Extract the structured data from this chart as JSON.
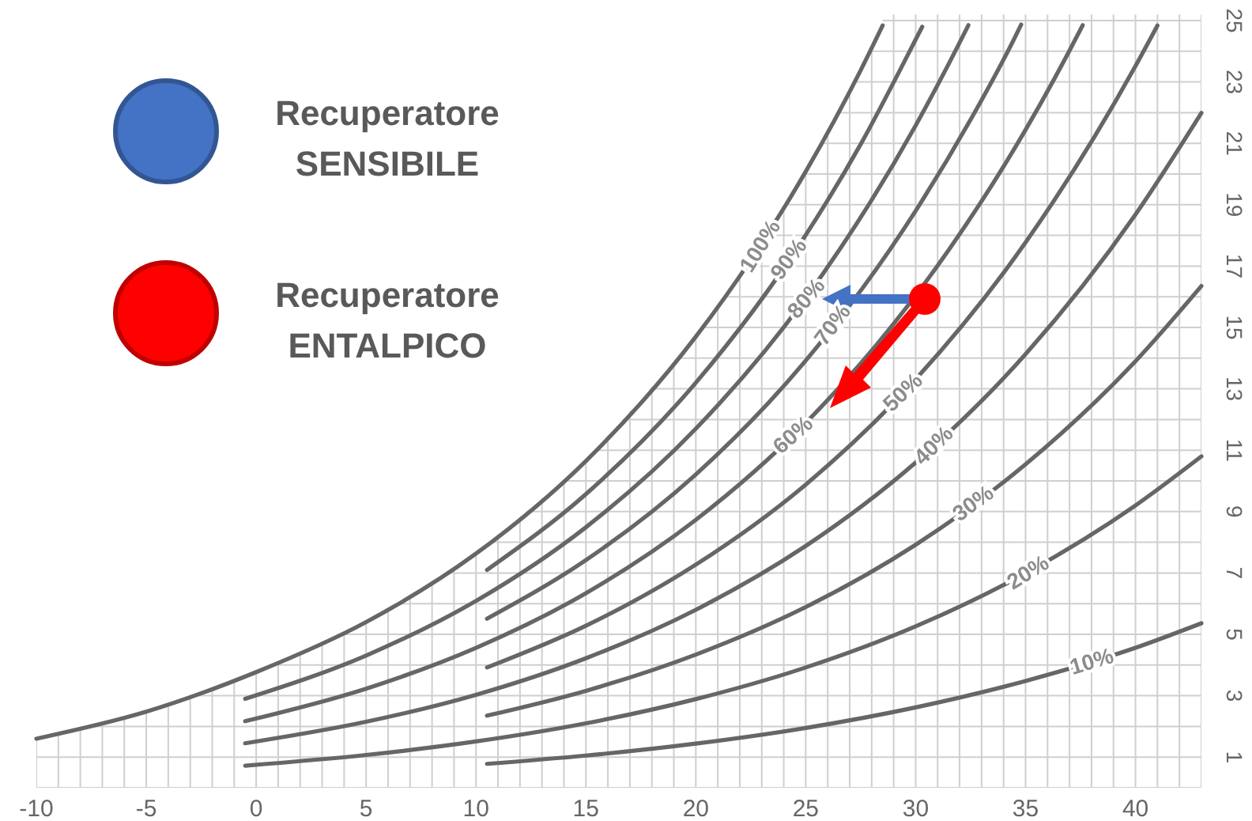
{
  "chart_data": {
    "type": "line",
    "xlim": [
      -10,
      43
    ],
    "ylim": [
      0,
      25.2
    ],
    "xticks": [
      -10,
      -5,
      0,
      5,
      10,
      15,
      20,
      25,
      30,
      35,
      40
    ],
    "yticks": [
      1,
      3,
      5,
      7,
      9,
      11,
      13,
      15,
      17,
      19,
      21,
      23,
      25
    ],
    "grid": true,
    "tick_labels": true,
    "annotations": [
      "Recuperatore SENSIBILE",
      "Recuperatore ENTALPICO"
    ],
    "series": [
      {
        "name": "100%",
        "color": "#666666",
        "x": [
          -10,
          -5,
          0,
          5,
          10,
          15,
          20,
          22.5,
          25,
          27.5,
          28.5
        ],
        "values": [
          1.6,
          2.48,
          3.77,
          5.4,
          7.63,
          10.65,
          14.7,
          17.2,
          20.08,
          23.38,
          24.84
        ]
      },
      {
        "name": "90%",
        "color": "#666666",
        "x": [
          10.5,
          15,
          20,
          25,
          27.5,
          30,
          30.3
        ],
        "values": [
          7.1,
          9.57,
          13.2,
          18.01,
          20.97,
          24.38,
          24.8
        ]
      },
      {
        "name": "80%",
        "color": "#666666",
        "x": [
          -0.5,
          5,
          10,
          15,
          20,
          25,
          30,
          32,
          32.4
        ],
        "values": [
          2.9,
          4.31,
          6.09,
          8.49,
          11.7,
          15.96,
          21.58,
          24.28,
          24.85
        ]
      },
      {
        "name": "70%",
        "color": "#666666",
        "x": [
          10.5,
          15,
          20,
          25,
          30,
          32.5,
          34.5,
          34.8
        ],
        "values": [
          5.51,
          7.42,
          10.21,
          13.92,
          18.8,
          21.77,
          24.43,
          24.87
        ]
      },
      {
        "name": "60%",
        "color": "#666666",
        "x": [
          -0.5,
          5,
          10,
          15,
          20,
          25,
          29,
          31.5,
          35,
          37.5,
          37.6
        ],
        "values": [
          2.17,
          3.23,
          4.56,
          6.34,
          8.73,
          11.89,
          15.12,
          17.52,
          21.44,
          24.71,
          24.85
        ]
      },
      {
        "name": "50%",
        "color": "#666666",
        "x": [
          10.5,
          15,
          20,
          25,
          30,
          35,
          40,
          41
        ],
        "values": [
          3.92,
          5.28,
          7.27,
          9.88,
          13.31,
          17.77,
          23.52,
          24.84
        ]
      },
      {
        "name": "40%",
        "color": "#666666",
        "x": [
          -0.5,
          5,
          10,
          15,
          20,
          25,
          30,
          35,
          40,
          43
        ],
        "values": [
          1.45,
          2.15,
          3.03,
          4.22,
          5.8,
          7.88,
          10.6,
          14.13,
          18.68,
          21.99
        ]
      },
      {
        "name": "30%",
        "color": "#666666",
        "x": [
          10.5,
          15,
          20,
          25,
          30,
          35,
          40,
          43
        ],
        "values": [
          2.35,
          3.16,
          4.34,
          5.89,
          7.92,
          10.54,
          13.9,
          16.35
        ]
      },
      {
        "name": "20%",
        "color": "#666666",
        "x": [
          -0.5,
          5,
          10,
          15,
          20,
          25,
          30,
          35,
          40,
          43
        ],
        "values": [
          0.72,
          1.07,
          1.51,
          2.1,
          2.89,
          3.92,
          5.26,
          6.99,
          9.2,
          10.8
        ]
      },
      {
        "name": "10%",
        "color": "#666666",
        "x": [
          10.5,
          15,
          20,
          25,
          30,
          35,
          40,
          43
        ],
        "values": [
          0.78,
          1.05,
          1.44,
          1.95,
          2.62,
          3.48,
          4.56,
          5.36
        ]
      }
    ]
  }
}
